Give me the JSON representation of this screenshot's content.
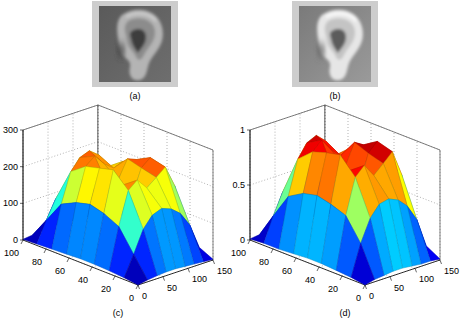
{
  "images": [
    {
      "caption": "(a)"
    },
    {
      "caption": "(b)"
    }
  ],
  "chart_data": [
    {
      "type": "surface",
      "caption": "(c)",
      "x": [
        0,
        19,
        38,
        56,
        75,
        94,
        112,
        131,
        150
      ],
      "y": [
        0,
        12,
        25,
        38,
        50,
        62,
        75,
        88,
        100
      ],
      "xlim": [
        0,
        150
      ],
      "xticks": [
        0,
        50,
        100,
        150
      ],
      "ylim": [
        0,
        100
      ],
      "yticks": [
        0,
        20,
        40,
        60,
        80,
        100
      ],
      "zlim": [
        0,
        300
      ],
      "zticks": [
        0,
        100,
        200,
        300
      ],
      "grid": true,
      "z": [
        [
          0,
          5,
          8,
          10,
          10,
          8,
          6,
          4,
          2
        ],
        [
          5,
          60,
          120,
          150,
          160,
          150,
          130,
          90,
          20
        ],
        [
          8,
          120,
          210,
          230,
          200,
          220,
          240,
          180,
          40
        ],
        [
          10,
          140,
          250,
          200,
          160,
          230,
          250,
          200,
          50
        ],
        [
          10,
          150,
          240,
          180,
          190,
          240,
          230,
          190,
          45
        ],
        [
          8,
          140,
          230,
          250,
          220,
          200,
          210,
          170,
          40
        ],
        [
          6,
          120,
          200,
          230,
          240,
          220,
          180,
          150,
          30
        ],
        [
          4,
          60,
          110,
          140,
          150,
          140,
          110,
          80,
          15
        ],
        [
          2,
          5,
          8,
          10,
          10,
          8,
          6,
          4,
          2
        ]
      ]
    },
    {
      "type": "surface",
      "caption": "(d)",
      "x": [
        0,
        19,
        38,
        56,
        75,
        94,
        112,
        131,
        150
      ],
      "y": [
        0,
        12,
        25,
        38,
        50,
        62,
        75,
        88,
        100
      ],
      "xlim": [
        0,
        150
      ],
      "xticks": [
        0,
        50,
        100,
        150
      ],
      "ylim": [
        0,
        100
      ],
      "yticks": [
        0,
        20,
        40,
        60,
        80,
        100
      ],
      "zlim": [
        0,
        1
      ],
      "zticks": [
        0,
        0.5,
        1
      ],
      "grid": true,
      "z": [
        [
          0,
          0.02,
          0.03,
          0.04,
          0.04,
          0.03,
          0.02,
          0.02,
          0.01
        ],
        [
          0.02,
          0.3,
          0.5,
          0.6,
          0.62,
          0.58,
          0.5,
          0.35,
          0.08
        ],
        [
          0.03,
          0.5,
          0.82,
          0.9,
          0.78,
          0.86,
          0.94,
          0.7,
          0.15
        ],
        [
          0.04,
          0.55,
          0.97,
          0.8,
          0.62,
          0.9,
          0.98,
          0.78,
          0.2
        ],
        [
          0.04,
          0.58,
          0.94,
          0.7,
          0.75,
          0.95,
          0.9,
          0.74,
          0.18
        ],
        [
          0.03,
          0.55,
          0.9,
          0.98,
          0.86,
          0.78,
          0.82,
          0.66,
          0.16
        ],
        [
          0.02,
          0.47,
          0.78,
          0.9,
          0.94,
          0.86,
          0.7,
          0.58,
          0.12
        ],
        [
          0.02,
          0.24,
          0.43,
          0.55,
          0.58,
          0.55,
          0.43,
          0.31,
          0.06
        ],
        [
          0.01,
          0.02,
          0.03,
          0.04,
          0.04,
          0.03,
          0.02,
          0.02,
          0.01
        ]
      ]
    }
  ]
}
